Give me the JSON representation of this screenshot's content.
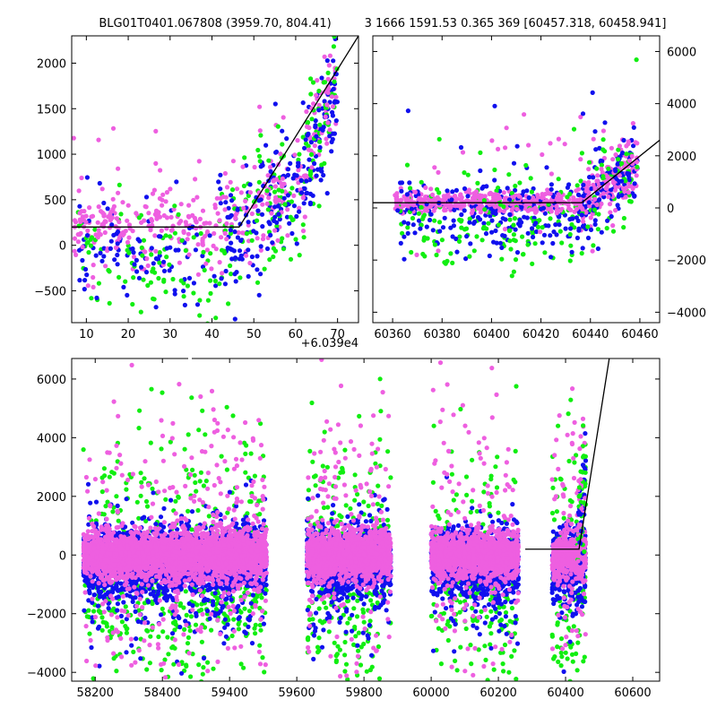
{
  "figure": {
    "title_left": "BLG01T0401.067808 (3959.70, 804.41)",
    "title_right": "3 1666 1591.53 0.365 369 [60457.318, 60458.941]"
  },
  "colors": {
    "band_a": "#ee5fe0",
    "band_b": "#1010ee",
    "band_c": "#11ee11",
    "model": "#000000"
  },
  "chart_data": [
    {
      "id": "zoom",
      "type": "scatter",
      "title": "",
      "xlabel": "",
      "ylabel": "",
      "x_offset_text": "+6.039e4",
      "xlim": [
        6.5,
        75
      ],
      "ylim": [
        -850,
        2300
      ],
      "xticks": [
        10,
        20,
        30,
        40,
        50,
        60,
        70
      ],
      "yticks": [
        -500,
        0,
        500,
        1000,
        1500,
        2000
      ],
      "grid": false,
      "series": [
        {
          "color_key": "band_a",
          "segments": [
            {
              "x": [
                7,
                40
              ],
              "y": [
                200,
                200
              ],
              "spread": 220,
              "n": 200
            },
            {
              "x": [
                40,
                62
              ],
              "y": [
                250,
                700
              ],
              "spread": 260,
              "n": 120
            },
            {
              "x": [
                62,
                70
              ],
              "y": [
                900,
                1900
              ],
              "spread": 300,
              "n": 60
            }
          ]
        },
        {
          "color_key": "band_b",
          "segments": [
            {
              "x": [
                8,
                42
              ],
              "y": [
                -50,
                -50
              ],
              "spread": 320,
              "n": 100
            },
            {
              "x": [
                42,
                62
              ],
              "y": [
                50,
                550
              ],
              "spread": 330,
              "n": 140
            },
            {
              "x": [
                62,
                70
              ],
              "y": [
                800,
                1700
              ],
              "spread": 300,
              "n": 80
            }
          ]
        },
        {
          "color_key": "band_c",
          "segments": [
            {
              "x": [
                8,
                42
              ],
              "y": [
                -150,
                -150
              ],
              "spread": 340,
              "n": 90
            },
            {
              "x": [
                42,
                62
              ],
              "y": [
                0,
                550
              ],
              "spread": 400,
              "n": 90
            },
            {
              "x": [
                62,
                70
              ],
              "y": [
                800,
                1900
              ],
              "spread": 350,
              "n": 50
            }
          ]
        }
      ],
      "model_line": {
        "x": [
          6.5,
          46.5,
          75
        ],
        "y": [
          200,
          200,
          2300
        ]
      }
    },
    {
      "id": "mid",
      "type": "scatter",
      "title": "",
      "xlabel": "",
      "ylabel": "",
      "xlim": [
        60352,
        60468
      ],
      "ylim": [
        -4400,
        6600
      ],
      "xticks": [
        60360,
        60380,
        60400,
        60420,
        60440,
        60460
      ],
      "yticks": [
        -4000,
        -2000,
        0,
        2000,
        4000,
        6000
      ],
      "yaxis_side": "right",
      "grid": false,
      "series": [
        {
          "color_key": "band_a",
          "segments": [
            {
              "x": [
                60361,
                60436
              ],
              "y": [
                200,
                200
              ],
              "spread": 200,
              "n": 420
            },
            {
              "x": [
                60436,
                60459
              ],
              "y": [
                250,
                1800
              ],
              "spread": 600,
              "n": 160
            }
          ]
        },
        {
          "color_key": "band_b",
          "segments": [
            {
              "x": [
                60362,
                60436
              ],
              "y": [
                -300,
                -300
              ],
              "spread": 700,
              "n": 220
            },
            {
              "x": [
                60436,
                60459
              ],
              "y": [
                0,
                1500
              ],
              "spread": 700,
              "n": 120
            }
          ]
        },
        {
          "color_key": "band_c",
          "segments": [
            {
              "x": [
                60362,
                60436
              ],
              "y": [
                -500,
                -500
              ],
              "spread": 900,
              "n": 160
            },
            {
              "x": [
                60436,
                60459
              ],
              "y": [
                0,
                1500
              ],
              "spread": 900,
              "n": 60
            }
          ]
        }
      ],
      "model_line": {
        "x": [
          60352,
          60436.5,
          60468
        ],
        "y": [
          200,
          200,
          2600
        ]
      }
    },
    {
      "id": "full",
      "type": "scatter",
      "title": "",
      "xlabel": "",
      "ylabel": "",
      "xlim": [
        58130,
        60680
      ],
      "ylim": [
        -4300,
        6700
      ],
      "xticks": [
        58200,
        58400,
        59400,
        59600,
        59800,
        60000,
        60200,
        60400,
        60600
      ],
      "xtick_positions_note": "non-uniform axis with a gap between 58430 and 59230",
      "yticks": [
        -4000,
        -2000,
        0,
        2000,
        4000,
        6000
      ],
      "grid": false,
      "break_x": [
        58430,
        59230
      ],
      "seasons": [
        {
          "x": [
            58165,
            58435
          ],
          "n_core": 1100,
          "n_scatter": 260
        },
        {
          "x": [
            59230,
            59510
          ],
          "n_core": 1200,
          "n_scatter": 320
        },
        {
          "x": [
            59630,
            59880
          ],
          "n_core": 1200,
          "n_scatter": 300
        },
        {
          "x": [
            60000,
            60260
          ],
          "n_core": 1100,
          "n_scatter": 260
        },
        {
          "x": [
            60360,
            60460
          ],
          "n_core": 380,
          "n_scatter": 140
        }
      ],
      "model_line": {
        "x": [
          60280,
          60440,
          60530
        ],
        "y": [
          200,
          200,
          6700
        ]
      }
    }
  ]
}
